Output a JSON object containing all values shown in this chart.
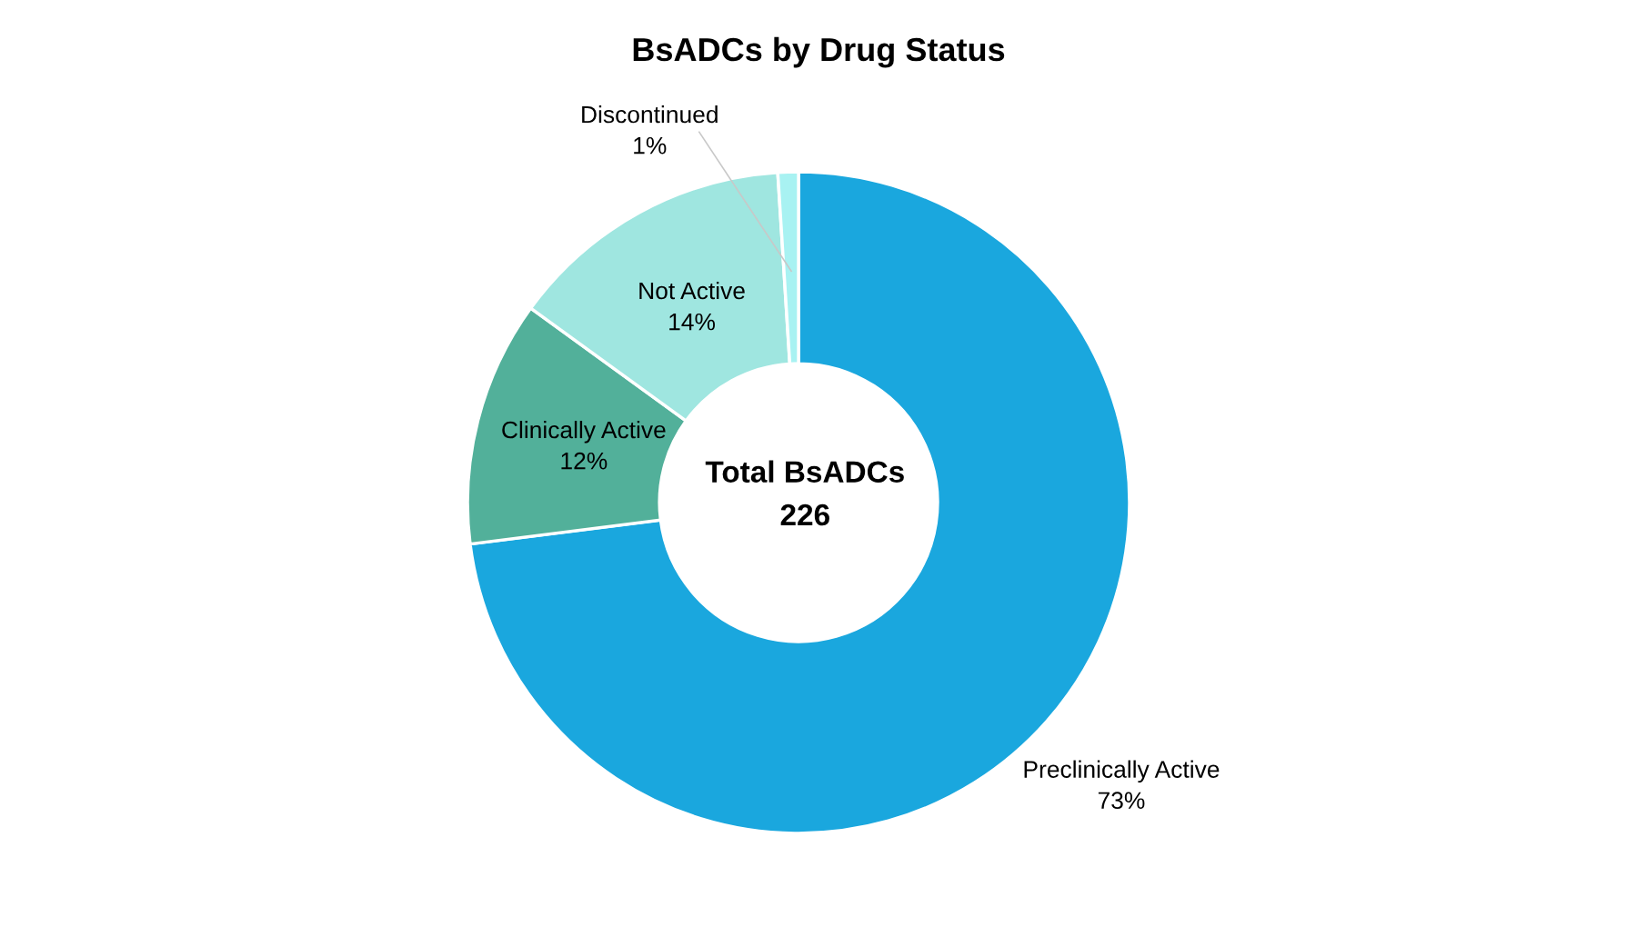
{
  "chart_data": {
    "type": "donut",
    "title": "BsADCs by Drug Status",
    "categories": [
      "Preclinically Active",
      "Clinically Active",
      "Not Active",
      "Discontinued"
    ],
    "values": [
      73,
      12,
      14,
      1
    ],
    "colors": [
      "#1aa7de",
      "#52b09a",
      "#9fe6e0",
      "#a8f2f2"
    ],
    "value_labels": [
      "73%",
      "12%",
      "14%",
      "1%"
    ],
    "annotations": [
      "Total BsADCs",
      "226"
    ],
    "legend": false
  }
}
